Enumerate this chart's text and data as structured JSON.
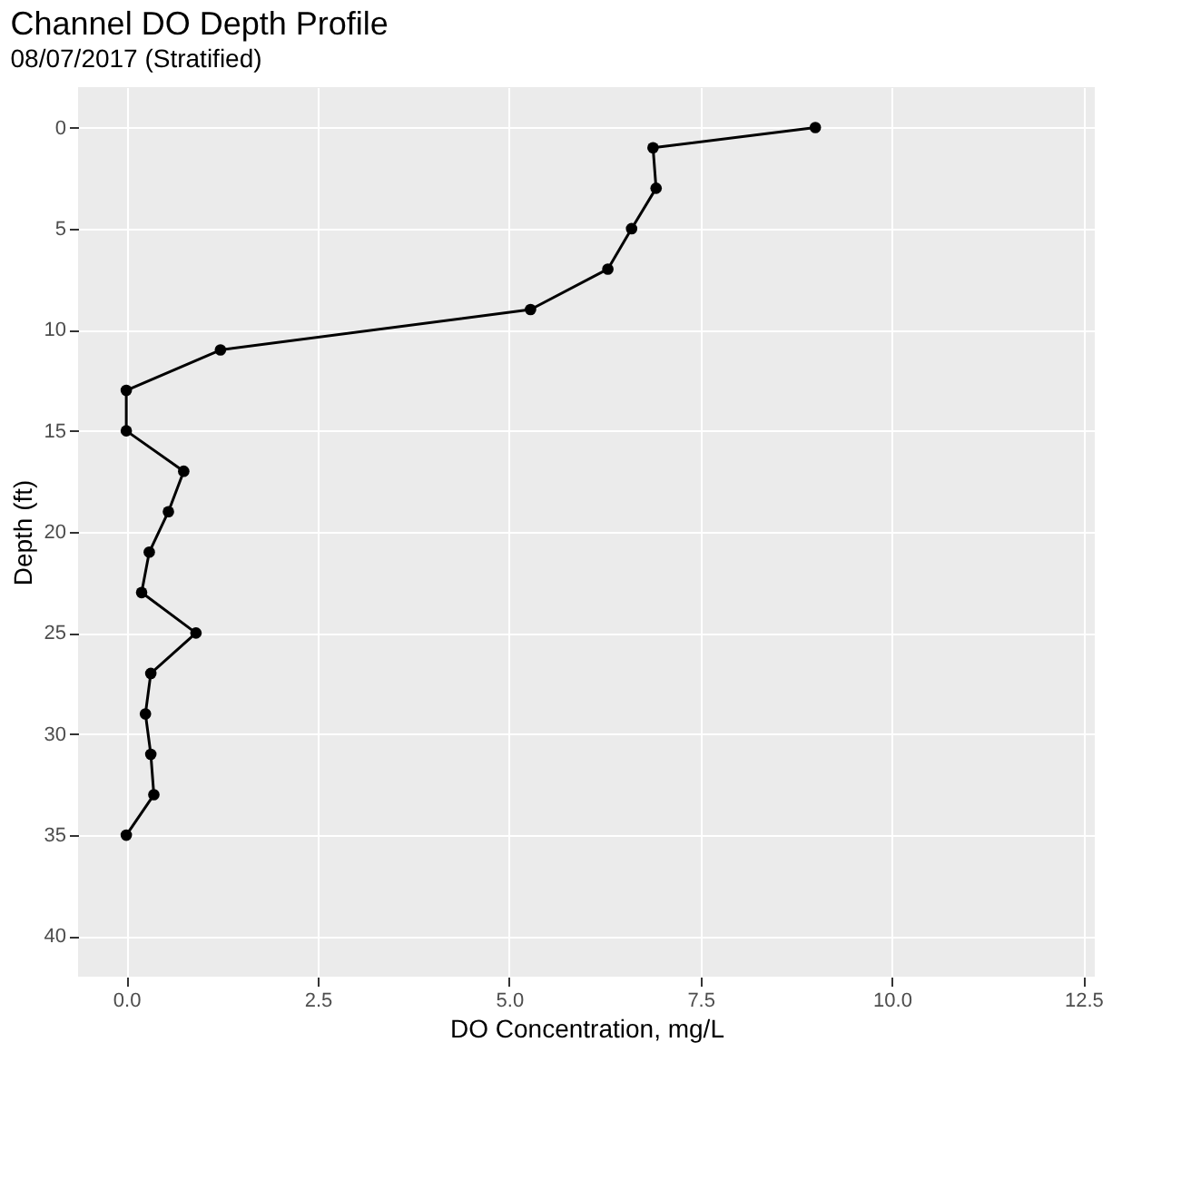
{
  "chart_data": {
    "type": "line",
    "title": "Channel DO Depth Profile",
    "subtitle": "08/07/2017 (Stratified)",
    "xlabel": "DO Concentration, mg/L",
    "ylabel": "Depth (ft)",
    "series": [
      {
        "color": "#000000",
        "x": [
          9.0,
          6.88,
          6.92,
          6.6,
          6.29,
          5.28,
          1.23,
          0,
          0,
          0.75,
          0.55,
          0.3,
          0.2,
          0.91,
          0.32,
          0.25,
          0.32,
          0.36,
          0
        ],
        "values": [
          0,
          1,
          3,
          5,
          7,
          9,
          11,
          13,
          15,
          17,
          19,
          21,
          23,
          25,
          27,
          29,
          31,
          33,
          35
        ]
      }
    ],
    "xlim": [
      -0.63,
      12.65
    ],
    "xticks": [
      {
        "value": 0,
        "label": "0.0"
      },
      2.5,
      {
        "value": 5,
        "label": "5.0"
      },
      7.5,
      {
        "value": 10,
        "label": "10.0"
      },
      12.5
    ],
    "ylim": [
      42,
      -2
    ],
    "yticks": [
      0,
      5,
      10,
      15,
      20,
      25,
      30,
      35,
      40
    ],
    "grid": true,
    "marker": "circle",
    "line_style": "solid"
  }
}
